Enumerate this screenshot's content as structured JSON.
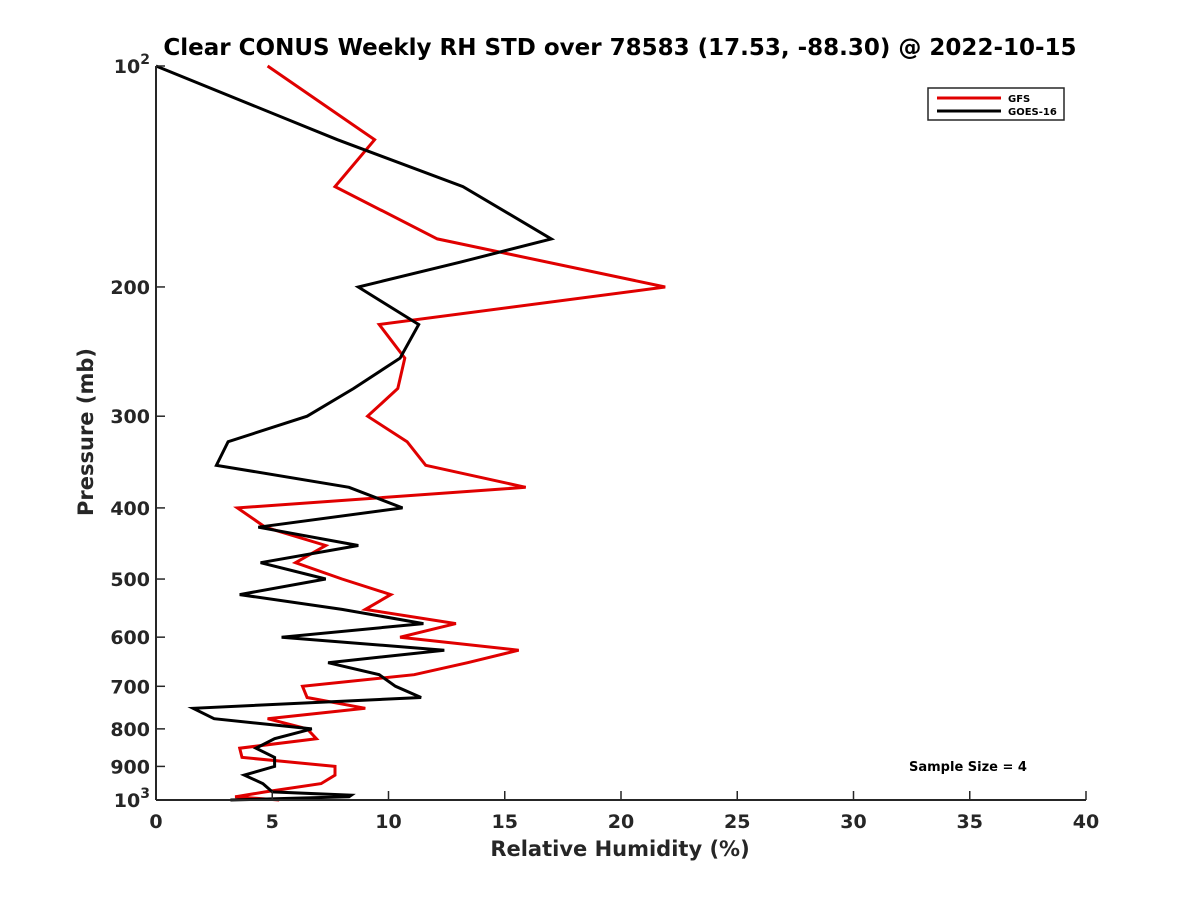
{
  "chart_data": {
    "type": "line",
    "title": "Clear CONUS Weekly RH STD over 78583 (17.53, -88.30) @ 2022-10-15",
    "xlabel": "Relative Humidity (%)",
    "ylabel": "Pressure (mb)",
    "xlim": [
      0,
      40
    ],
    "ylim": [
      100,
      1000
    ],
    "y_scale": "log",
    "y_reversed": true,
    "grid": false,
    "legend_position": "top-right",
    "x_ticks": [
      {
        "value": 0,
        "label": "0"
      },
      {
        "value": 5,
        "label": "5"
      },
      {
        "value": 10,
        "label": "10"
      },
      {
        "value": 15,
        "label": "15"
      },
      {
        "value": 20,
        "label": "20"
      },
      {
        "value": 25,
        "label": "25"
      },
      {
        "value": 30,
        "label": "30"
      },
      {
        "value": 35,
        "label": "35"
      },
      {
        "value": 40,
        "label": "40"
      }
    ],
    "y_ticks": [
      {
        "value": 100,
        "base": "10",
        "exp": "2"
      },
      {
        "value": 200,
        "label": "200"
      },
      {
        "value": 300,
        "label": "300"
      },
      {
        "value": 400,
        "label": "400"
      },
      {
        "value": 500,
        "label": "500"
      },
      {
        "value": 600,
        "label": "600"
      },
      {
        "value": 700,
        "label": "700"
      },
      {
        "value": 800,
        "label": "800"
      },
      {
        "value": 900,
        "label": "900"
      },
      {
        "value": 1000,
        "base": "10",
        "exp": "3"
      }
    ],
    "annotation": "Sample Size = 4",
    "series": [
      {
        "name": "GFS",
        "color": "#e00000",
        "points": [
          {
            "x": 4.8,
            "y": 100
          },
          {
            "x": 9.4,
            "y": 126
          },
          {
            "x": 7.7,
            "y": 146
          },
          {
            "x": 12.1,
            "y": 172
          },
          {
            "x": 21.9,
            "y": 200
          },
          {
            "x": 9.6,
            "y": 225
          },
          {
            "x": 10.7,
            "y": 250
          },
          {
            "x": 10.4,
            "y": 275
          },
          {
            "x": 9.1,
            "y": 300
          },
          {
            "x": 10.8,
            "y": 325
          },
          {
            "x": 11.6,
            "y": 350
          },
          {
            "x": 15.9,
            "y": 375
          },
          {
            "x": 3.5,
            "y": 400
          },
          {
            "x": 4.7,
            "y": 425
          },
          {
            "x": 7.3,
            "y": 450
          },
          {
            "x": 6.0,
            "y": 475
          },
          {
            "x": 8.0,
            "y": 500
          },
          {
            "x": 10.1,
            "y": 525
          },
          {
            "x": 9.0,
            "y": 550
          },
          {
            "x": 12.9,
            "y": 575
          },
          {
            "x": 10.5,
            "y": 600
          },
          {
            "x": 15.6,
            "y": 625
          },
          {
            "x": 13.4,
            "y": 650
          },
          {
            "x": 11.1,
            "y": 675
          },
          {
            "x": 6.3,
            "y": 700
          },
          {
            "x": 6.5,
            "y": 725
          },
          {
            "x": 9.0,
            "y": 750
          },
          {
            "x": 4.8,
            "y": 775
          },
          {
            "x": 6.5,
            "y": 800
          },
          {
            "x": 6.9,
            "y": 825
          },
          {
            "x": 3.6,
            "y": 850
          },
          {
            "x": 3.7,
            "y": 875
          },
          {
            "x": 7.7,
            "y": 900
          },
          {
            "x": 7.7,
            "y": 925
          },
          {
            "x": 7.1,
            "y": 950
          },
          {
            "x": 4.7,
            "y": 975
          },
          {
            "x": 3.4,
            "y": 990
          },
          {
            "x": 5.3,
            "y": 1000
          }
        ]
      },
      {
        "name": "GOES-16",
        "color": "#000000",
        "points": [
          {
            "x": 0.0,
            "y": 100
          },
          {
            "x": 7.8,
            "y": 126
          },
          {
            "x": 13.2,
            "y": 146
          },
          {
            "x": 17.0,
            "y": 172
          },
          {
            "x": 13.1,
            "y": 185
          },
          {
            "x": 8.7,
            "y": 200
          },
          {
            "x": 11.3,
            "y": 225
          },
          {
            "x": 10.5,
            "y": 250
          },
          {
            "x": 8.5,
            "y": 275
          },
          {
            "x": 6.5,
            "y": 300
          },
          {
            "x": 3.1,
            "y": 325
          },
          {
            "x": 2.6,
            "y": 350
          },
          {
            "x": 8.3,
            "y": 375
          },
          {
            "x": 10.6,
            "y": 400
          },
          {
            "x": 4.4,
            "y": 425
          },
          {
            "x": 8.7,
            "y": 450
          },
          {
            "x": 4.5,
            "y": 475
          },
          {
            "x": 7.3,
            "y": 500
          },
          {
            "x": 3.6,
            "y": 525
          },
          {
            "x": 8.0,
            "y": 550
          },
          {
            "x": 11.5,
            "y": 575
          },
          {
            "x": 5.4,
            "y": 600
          },
          {
            "x": 12.4,
            "y": 625
          },
          {
            "x": 7.4,
            "y": 650
          },
          {
            "x": 9.6,
            "y": 675
          },
          {
            "x": 10.3,
            "y": 700
          },
          {
            "x": 11.4,
            "y": 725
          },
          {
            "x": 1.6,
            "y": 750
          },
          {
            "x": 2.5,
            "y": 775
          },
          {
            "x": 6.7,
            "y": 800
          },
          {
            "x": 5.1,
            "y": 825
          },
          {
            "x": 4.3,
            "y": 850
          },
          {
            "x": 5.1,
            "y": 875
          },
          {
            "x": 5.1,
            "y": 900
          },
          {
            "x": 3.8,
            "y": 925
          },
          {
            "x": 4.6,
            "y": 950
          },
          {
            "x": 5.0,
            "y": 975
          },
          {
            "x": 8.4,
            "y": 985
          },
          {
            "x": 8.3,
            "y": 990
          },
          {
            "x": 5.7,
            "y": 995
          },
          {
            "x": 3.2,
            "y": 1000
          }
        ]
      }
    ]
  }
}
